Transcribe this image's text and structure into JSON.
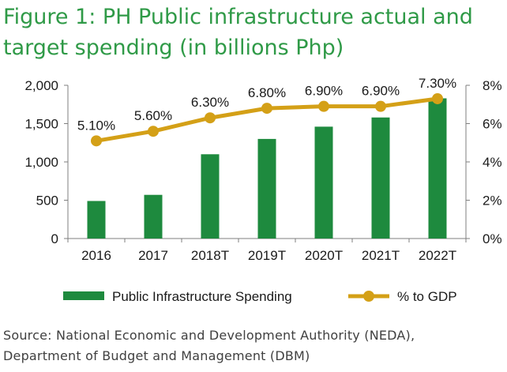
{
  "figure_title": "Figure 1: PH Public infrastructure actual and target spending (in billions Php)",
  "source_line1": "Source: National Economic and Development Authority (NEDA),",
  "source_line2": "Department of Budget and Management (DBM)",
  "colors": {
    "bars": "#1e8a3e",
    "line": "#d4a017",
    "title": "#2f9a47",
    "axis_text": "#1a1a1a"
  },
  "chart_data": {
    "type": "bar",
    "title": "Figure 1: PH Public infrastructure actual and target spending (in billions Php)",
    "categories": [
      "2016",
      "2017",
      "2018T",
      "2019T",
      "2020T",
      "2021T",
      "2022T"
    ],
    "series": [
      {
        "name": "Public Infrastructure Spending",
        "type": "bar",
        "axis": "left",
        "values": [
          490,
          570,
          1100,
          1300,
          1460,
          1580,
          1830
        ]
      },
      {
        "name": "% to GDP",
        "type": "line",
        "axis": "right",
        "values": [
          5.1,
          5.6,
          6.3,
          6.8,
          6.9,
          6.9,
          7.3
        ],
        "labels": [
          "5.10%",
          "5.60%",
          "6.30%",
          "6.80%",
          "6.90%",
          "6.90%",
          "7.30%"
        ]
      }
    ],
    "y_left": {
      "min": 0,
      "max": 2000,
      "ticks": [
        0,
        500,
        1000,
        1500,
        2000
      ],
      "tick_labels": [
        "0",
        "500",
        "1,000",
        "1,500",
        "2,000"
      ]
    },
    "y_right": {
      "min": 0,
      "max": 8,
      "ticks": [
        0,
        2,
        4,
        6,
        8
      ],
      "tick_labels": [
        "0%",
        "2%",
        "4%",
        "6%",
        "8%"
      ]
    },
    "grid": false,
    "legend_position": "bottom"
  }
}
